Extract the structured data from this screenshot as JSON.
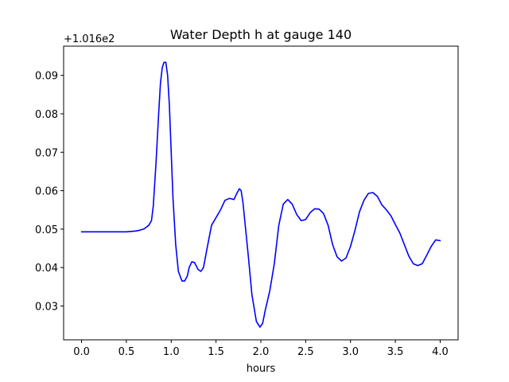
{
  "chart_data": {
    "type": "line",
    "title": "Water Depth h at gauge 140",
    "xlabel": "hours",
    "ylabel": "",
    "y_offset_label": "+1.016e2",
    "xlim": [
      -0.2,
      4.2
    ],
    "ylim": [
      0.0212,
      0.0976
    ],
    "x_ticks": [
      0.0,
      0.5,
      1.0,
      1.5,
      2.0,
      2.5,
      3.0,
      3.5,
      4.0
    ],
    "x_tick_labels": [
      "0.0",
      "0.5",
      "1.0",
      "1.5",
      "2.0",
      "2.5",
      "3.0",
      "3.5",
      "4.0"
    ],
    "y_ticks": [
      0.03,
      0.04,
      0.05,
      0.06,
      0.07,
      0.08,
      0.09
    ],
    "y_tick_labels": [
      "0.03",
      "0.04",
      "0.05",
      "0.06",
      "0.07",
      "0.08",
      "0.09"
    ],
    "grid": false,
    "line_color": "#0000ff",
    "series": [
      {
        "x": [
          0.0,
          0.1,
          0.2,
          0.3,
          0.4,
          0.5,
          0.55,
          0.6,
          0.65,
          0.7,
          0.75,
          0.78,
          0.8,
          0.83,
          0.86,
          0.88,
          0.9,
          0.92,
          0.94,
          0.96,
          0.98,
          1.0,
          1.02,
          1.05,
          1.08,
          1.12,
          1.15,
          1.18,
          1.2,
          1.23,
          1.26,
          1.3,
          1.33,
          1.36,
          1.4,
          1.45,
          1.5,
          1.55,
          1.6,
          1.65,
          1.7,
          1.73,
          1.76,
          1.78,
          1.8,
          1.83,
          1.86,
          1.9,
          1.95,
          1.99,
          2.02,
          2.05,
          2.1,
          2.15,
          2.2,
          2.25,
          2.3,
          2.35,
          2.4,
          2.45,
          2.5,
          2.55,
          2.6,
          2.65,
          2.7,
          2.75,
          2.8,
          2.85,
          2.9,
          2.95,
          3.0,
          3.05,
          3.1,
          3.15,
          3.2,
          3.25,
          3.3,
          3.35,
          3.4,
          3.45,
          3.5,
          3.55,
          3.6,
          3.65,
          3.7,
          3.75,
          3.8,
          3.85,
          3.9,
          3.95,
          4.0
        ],
        "y": [
          0.0493,
          0.0493,
          0.0493,
          0.0493,
          0.0493,
          0.0493,
          0.0494,
          0.0495,
          0.0497,
          0.0501,
          0.051,
          0.0522,
          0.056,
          0.067,
          0.08,
          0.088,
          0.092,
          0.0934,
          0.0934,
          0.09,
          0.082,
          0.07,
          0.058,
          0.046,
          0.039,
          0.0365,
          0.0365,
          0.0378,
          0.04,
          0.0415,
          0.0413,
          0.0395,
          0.039,
          0.04,
          0.045,
          0.051,
          0.053,
          0.055,
          0.0575,
          0.058,
          0.0577,
          0.0592,
          0.0605,
          0.06,
          0.057,
          0.05,
          0.043,
          0.033,
          0.026,
          0.0245,
          0.0255,
          0.029,
          0.034,
          0.041,
          0.051,
          0.0565,
          0.0577,
          0.0565,
          0.0538,
          0.0522,
          0.0525,
          0.0543,
          0.0553,
          0.0552,
          0.054,
          0.051,
          0.046,
          0.0428,
          0.0417,
          0.0425,
          0.0455,
          0.0497,
          0.0545,
          0.0575,
          0.0593,
          0.0595,
          0.0585,
          0.0563,
          0.055,
          0.0535,
          0.0512,
          0.049,
          0.046,
          0.043,
          0.041,
          0.0405,
          0.041,
          0.0432,
          0.0455,
          0.0472,
          0.047
        ]
      }
    ]
  }
}
